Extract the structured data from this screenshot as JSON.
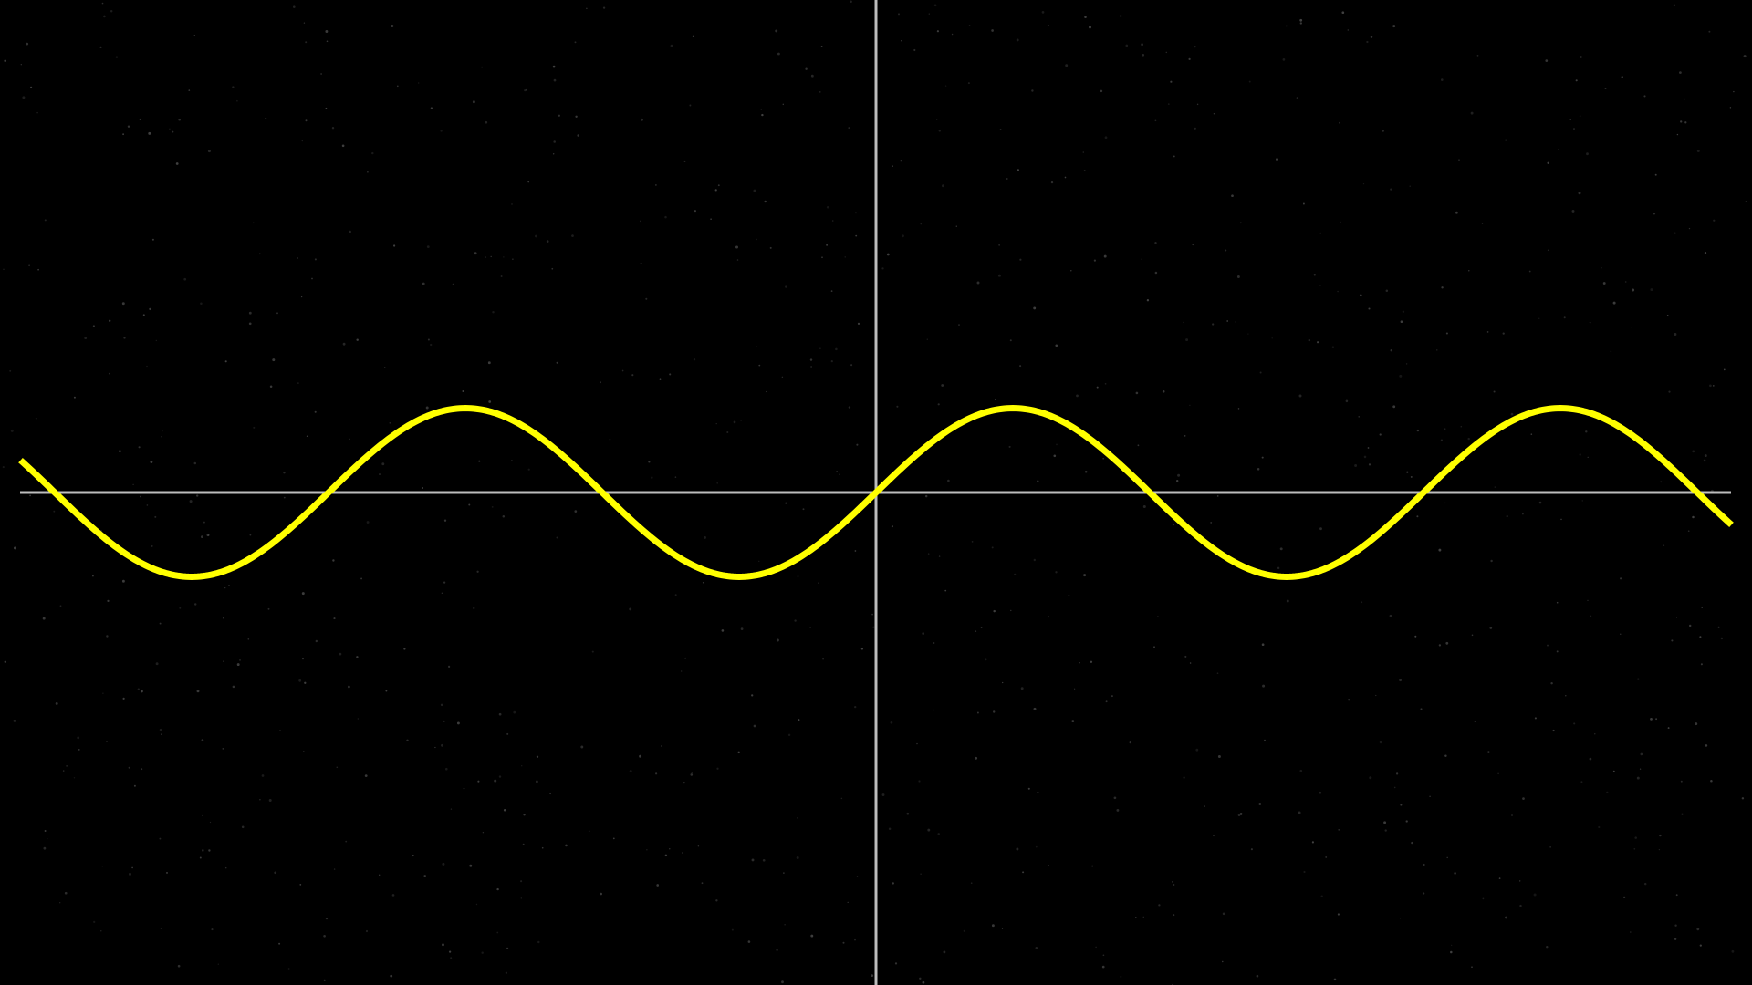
{
  "chart_data": {
    "type": "line",
    "title": "",
    "xlabel": "",
    "ylabel": "",
    "grid": false,
    "legend": "none",
    "background": "#000000",
    "axis_color": "#bdbdbd",
    "speckle_color": "#555555",
    "xlim": [
      -6.4,
      6.4
    ],
    "ylim": [
      -3.68,
      3.68
    ],
    "series": [
      {
        "function": "sin(x)",
        "color": "#ffff00",
        "x_range": [
          -6.25,
          6.25
        ],
        "amplitude": 0.63,
        "period": 4.0,
        "phase": 0.0
      }
    ]
  }
}
